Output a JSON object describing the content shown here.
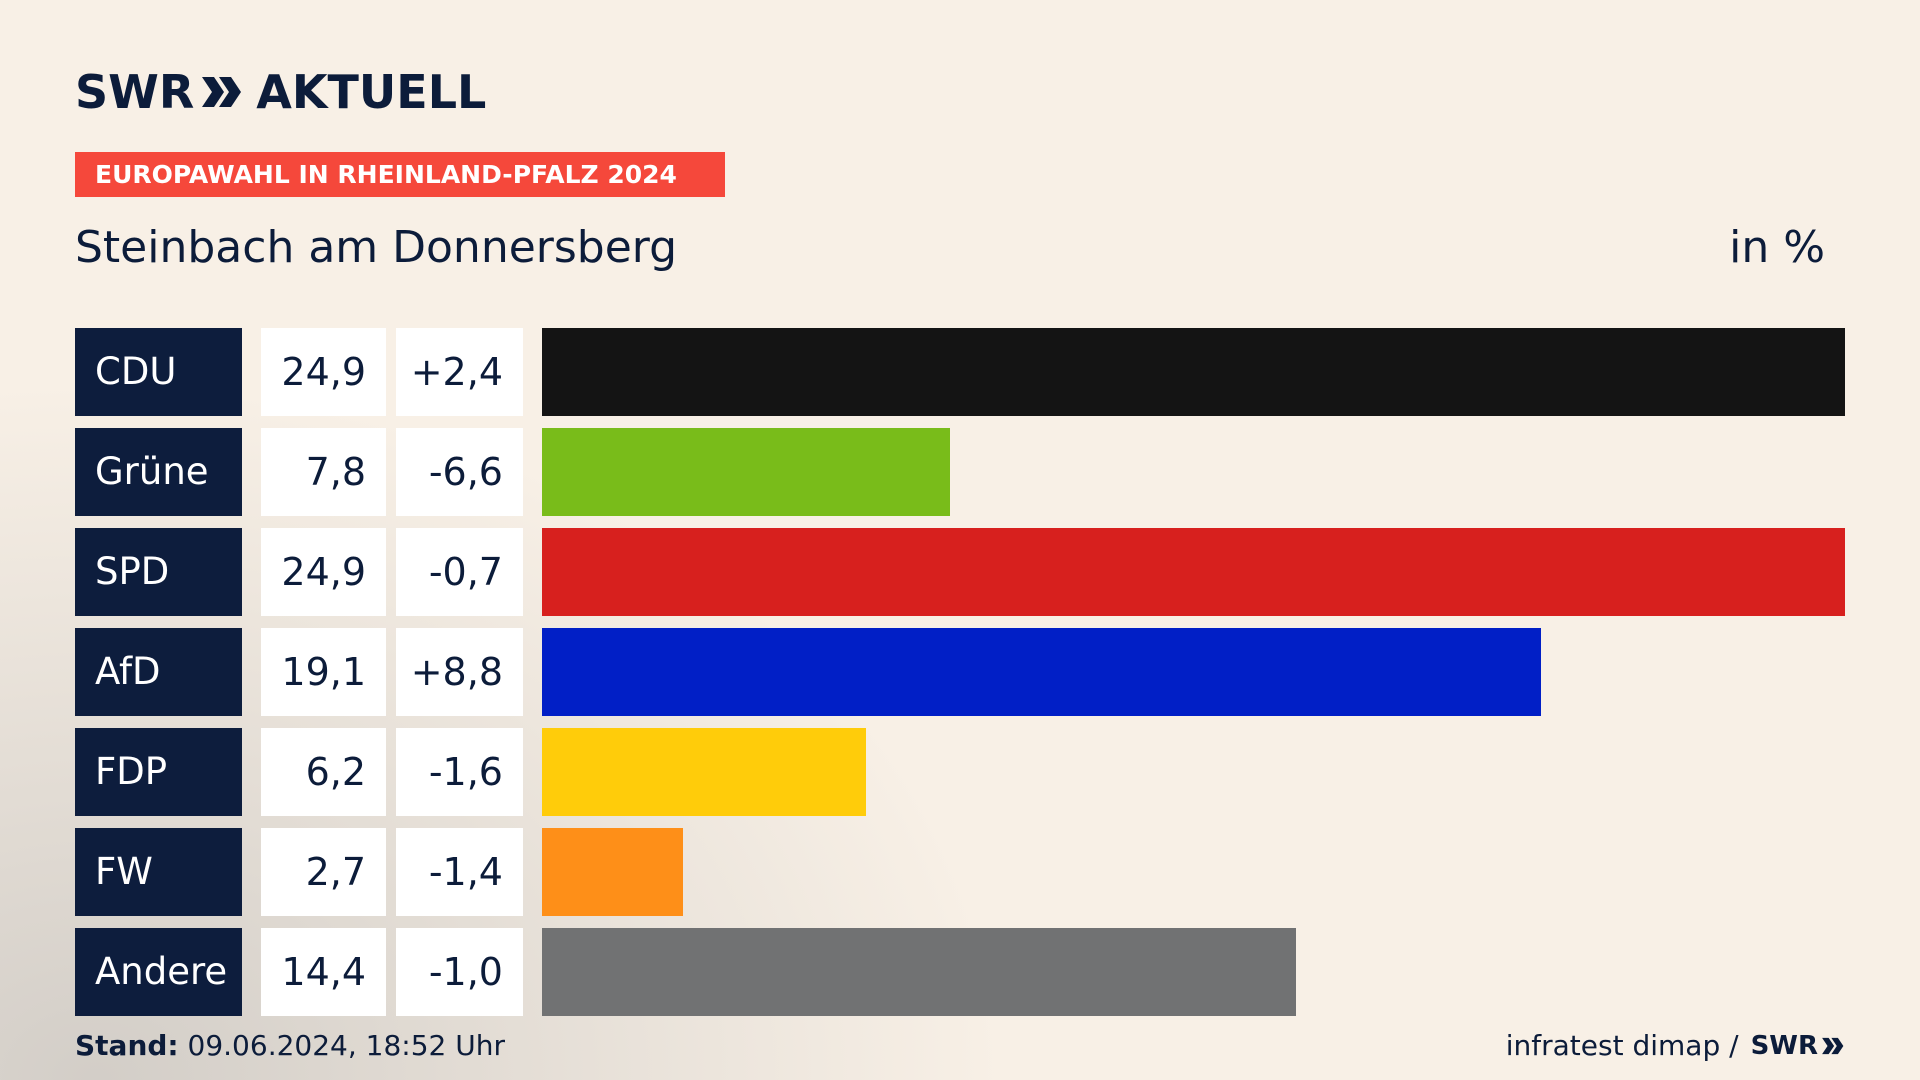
{
  "header": {
    "logo_left": "SWR",
    "logo_right": "AKTUELL",
    "tag": "EUROPAWAHL IN RHEINLAND-PFALZ 2024",
    "title": "Steinbach am Donnersberg",
    "unit": "in %"
  },
  "chart_data": {
    "type": "bar",
    "orientation": "horizontal",
    "categories": [
      "CDU",
      "Grüne",
      "SPD",
      "AfD",
      "FDP",
      "FW",
      "Andere"
    ],
    "values": [
      24.9,
      7.8,
      24.9,
      19.1,
      6.2,
      2.7,
      14.4
    ],
    "value_labels": [
      "24,9",
      "7,8",
      "24,9",
      "19,1",
      "6,2",
      "2,7",
      "14,4"
    ],
    "diff_labels": [
      "+2,4",
      "-6,6",
      "-0,7",
      "+8,8",
      "-1,6",
      "-1,4",
      "-1,0"
    ],
    "colors": [
      "#141414",
      "#79bc1a",
      "#d7201e",
      "#011fc6",
      "#ffcc0a",
      "#fe8f18",
      "#717273"
    ],
    "xlim": [
      0,
      24.9
    ]
  },
  "footer": {
    "stand_label": "Stand:",
    "stand_value": "09.06.2024, 18:52 Uhr",
    "source": "infratest dimap /",
    "source_logo": "SWR"
  }
}
